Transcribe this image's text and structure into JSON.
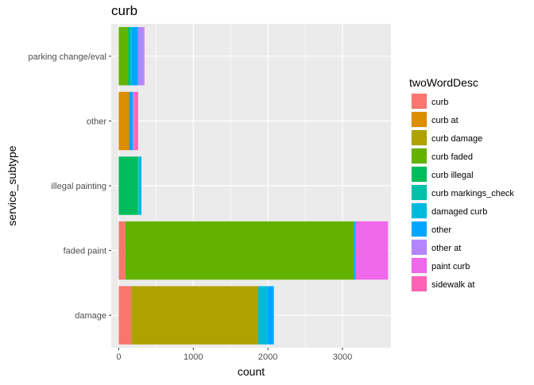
{
  "chart_data": {
    "type": "bar",
    "orientation": "horizontal",
    "stacked": true,
    "title": "curb",
    "xlabel": "count",
    "ylabel": "service_subtype",
    "xlim": [
      -100,
      3650
    ],
    "x_ticks": [
      0,
      1000,
      2000,
      3000
    ],
    "grid": true,
    "legend_position": "right",
    "legend_title": "twoWordDesc",
    "categories": [
      "parking change/eval",
      "other",
      "illegal painting",
      "faded paint",
      "damage"
    ],
    "series": [
      {
        "name": "curb",
        "color": "#F8766D",
        "values": [
          0,
          0,
          0,
          90,
          170
        ]
      },
      {
        "name": "curb  at",
        "color": "#DB8E00",
        "values": [
          0,
          140,
          0,
          0,
          0
        ]
      },
      {
        "name": "curb damage",
        "color": "#AEA200",
        "values": [
          0,
          0,
          0,
          0,
          1700
        ]
      },
      {
        "name": "curb faded",
        "color": "#64B200",
        "values": [
          125,
          0,
          0,
          3060,
          0
        ]
      },
      {
        "name": "curb illegal",
        "color": "#00BD5C",
        "values": [
          25,
          0,
          255,
          0,
          0
        ]
      },
      {
        "name": "curb markings_check",
        "color": "#00C1A7",
        "values": [
          0,
          0,
          15,
          0,
          0
        ]
      },
      {
        "name": "damaged curb",
        "color": "#00BADE",
        "values": [
          25,
          0,
          30,
          30,
          125
        ]
      },
      {
        "name": "other",
        "color": "#00A6FF",
        "values": [
          85,
          50,
          5,
          0,
          85
        ]
      },
      {
        "name": "other  at",
        "color": "#B385FF",
        "values": [
          75,
          10,
          0,
          0,
          0
        ]
      },
      {
        "name": "paint curb",
        "color": "#EF67EB",
        "values": [
          10,
          10,
          0,
          430,
          0
        ]
      },
      {
        "name": "sidewalk  at",
        "color": "#FF63B6",
        "values": [
          0,
          50,
          0,
          0,
          0
        ]
      }
    ]
  },
  "colors": {
    "panel_background": "#EBEBEB",
    "gridline": "#FFFFFF"
  }
}
